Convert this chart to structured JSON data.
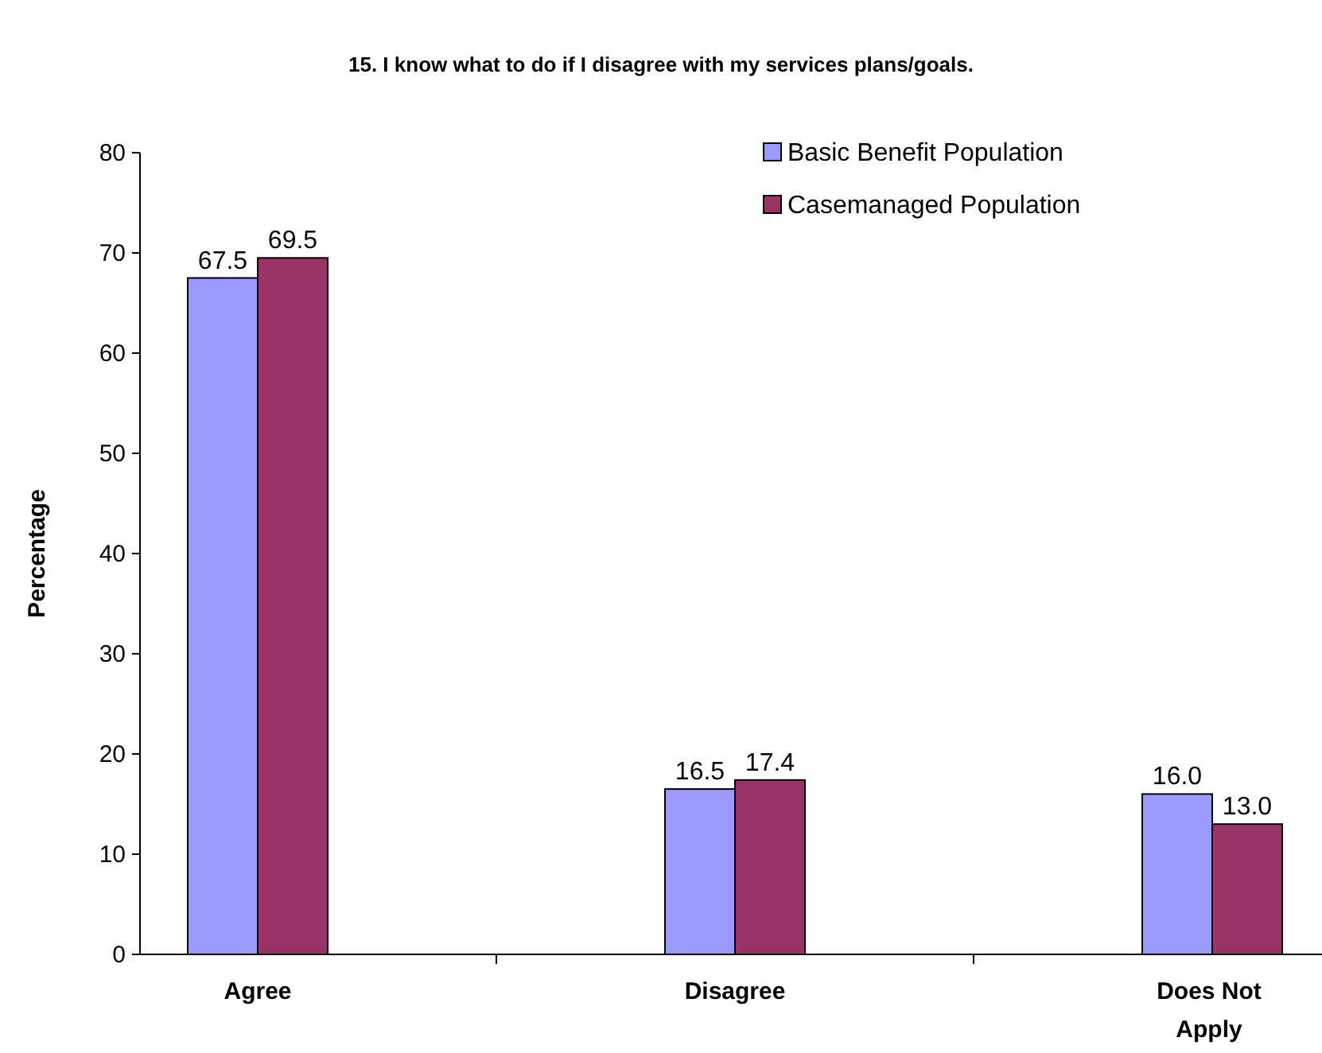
{
  "chart_data": {
    "type": "bar",
    "title": "15.  I know what to do if I disagree with my services plans/goals.",
    "ylabel": "Percentage",
    "categories": [
      "Agree",
      "Disagree",
      "Does Not Apply"
    ],
    "series": [
      {
        "name": "Basic Benefit Population",
        "color": "#9999ff",
        "values": [
          67.5,
          16.5,
          16.0
        ]
      },
      {
        "name": "Casemanaged Population",
        "color": "#993366",
        "values": [
          69.5,
          17.4,
          13.0
        ]
      }
    ],
    "value_labels": [
      [
        "67.5",
        "16.5",
        "16.0"
      ],
      [
        "69.5",
        "17.4",
        "13.0"
      ]
    ],
    "ylim": [
      0,
      80
    ],
    "yticks": [
      0,
      10,
      20,
      30,
      40,
      50,
      60,
      70,
      80
    ],
    "grid": false,
    "legend": "top right"
  }
}
